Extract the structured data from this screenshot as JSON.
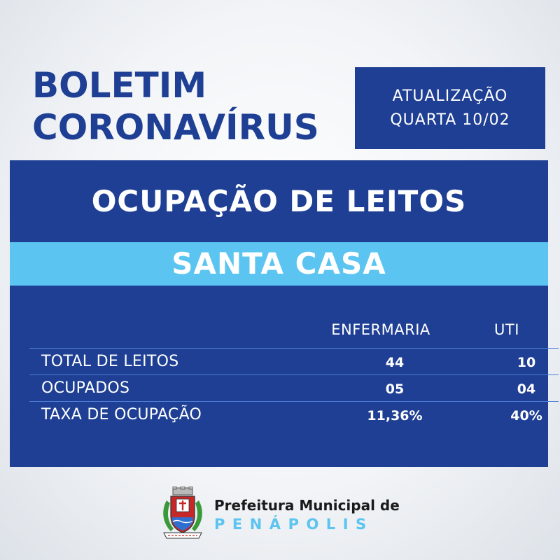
{
  "header": {
    "title_line1": "BOLETIM",
    "title_line2": "CORONAVÍRUS",
    "update_line1": "ATUALIZAÇÃO",
    "update_line2": "QUARTA 10/02"
  },
  "panel": {
    "title": "OCUPAÇÃO DE LEITOS",
    "hospital": "SANTA CASA",
    "columns": [
      "ENFERMARIA",
      "UTI"
    ],
    "rows": [
      {
        "label": "TOTAL DE LEITOS",
        "enfermaria": "44",
        "uti": "10"
      },
      {
        "label": "OCUPADOS",
        "enfermaria": "05",
        "uti": "04"
      },
      {
        "label": "TAXA DE OCUPAÇÃO",
        "enfermaria": "11,36%",
        "uti": "40%"
      }
    ]
  },
  "footer": {
    "org_line1": "Prefeitura Municipal de",
    "org_line2": "PENÁPOLIS",
    "logo": "coat-of-arms-icon"
  },
  "colors": {
    "navy": "#1e3f93",
    "light_blue": "#5bc4f0",
    "divider": "#4d7fd6"
  }
}
